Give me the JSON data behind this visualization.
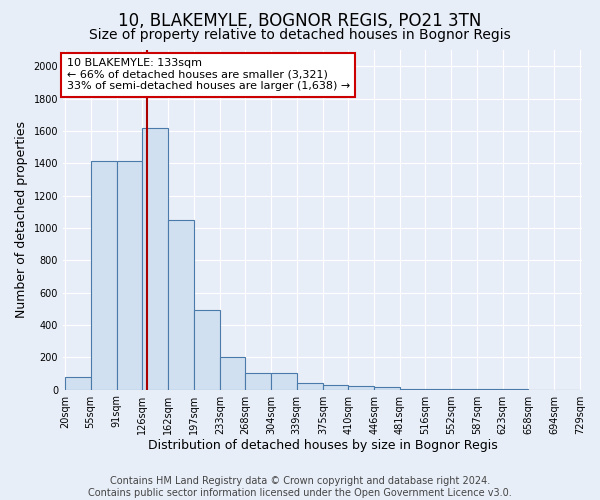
{
  "title1": "10, BLAKEMYLE, BOGNOR REGIS, PO21 3TN",
  "title2": "Size of property relative to detached houses in Bognor Regis",
  "xlabel": "Distribution of detached houses by size in Bognor Regis",
  "ylabel": "Number of detached properties",
  "bin_edges": [
    20,
    55,
    91,
    126,
    162,
    197,
    233,
    268,
    304,
    339,
    375,
    410,
    446,
    481,
    516,
    552,
    587,
    623,
    658,
    694,
    729
  ],
  "bar_heights": [
    80,
    1415,
    1415,
    1620,
    1050,
    490,
    200,
    105,
    105,
    40,
    30,
    20,
    15,
    5,
    3,
    2,
    2,
    1,
    0,
    0
  ],
  "bar_color": "#d0e0f0",
  "bar_edge_color": "#4a7aaa",
  "bar_edge_width": 0.8,
  "red_line_x": 133,
  "annotation_title": "10 BLAKEMYLE: 133sqm",
  "annotation_line1": "← 66% of detached houses are smaller (3,321)",
  "annotation_line2": "33% of semi-detached houses are larger (1,638) →",
  "annotation_box_facecolor": "#ffffff",
  "annotation_box_edgecolor": "#cc0000",
  "red_line_color": "#aa0000",
  "ylim": [
    0,
    2100
  ],
  "yticks": [
    0,
    200,
    400,
    600,
    800,
    1000,
    1200,
    1400,
    1600,
    1800,
    2000
  ],
  "background_color": "#e8eef8",
  "grid_color": "#ffffff",
  "footer1": "Contains HM Land Registry data © Crown copyright and database right 2024.",
  "footer2": "Contains public sector information licensed under the Open Government Licence v3.0.",
  "title1_fontsize": 12,
  "title2_fontsize": 10,
  "xlabel_fontsize": 9,
  "ylabel_fontsize": 9,
  "tick_fontsize": 7,
  "annotation_fontsize": 8,
  "footer_fontsize": 7
}
